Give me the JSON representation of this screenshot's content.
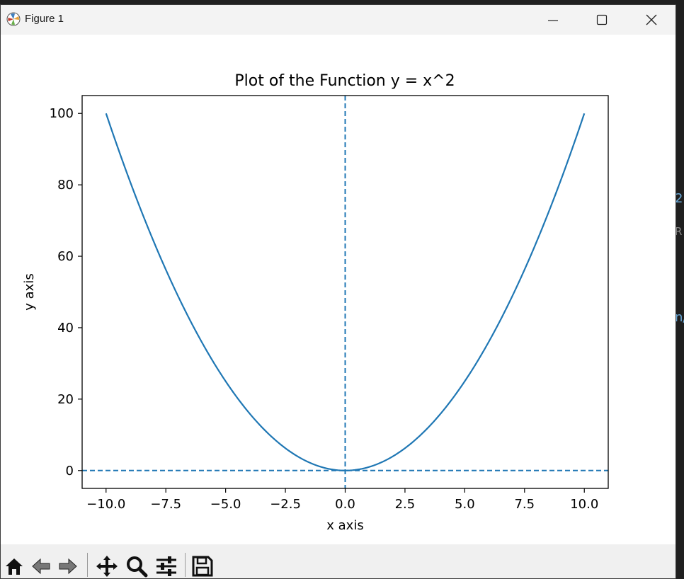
{
  "window": {
    "title": "Figure 1"
  },
  "titlebar_buttons": [
    "minimize-icon",
    "maximize-icon",
    "close-icon"
  ],
  "toolbar": {
    "tools": [
      "home-icon",
      "back-icon",
      "forward-icon",
      "pan-icon",
      "zoom-icon",
      "configure-subplots-icon",
      "save-icon"
    ]
  },
  "background_fragments": [
    "2",
    "R",
    "n/"
  ],
  "chart_data": {
    "type": "line",
    "title": "Plot of the Function y = x^2",
    "xlabel": "x axis",
    "ylabel": "y axis",
    "xlim": [
      -11,
      11
    ],
    "ylim": [
      -5,
      105
    ],
    "x_ticks": [
      -10,
      -7.5,
      -5,
      -2.5,
      0,
      2.5,
      5,
      7.5,
      10
    ],
    "x_tick_labels": [
      "−10.0",
      "−7.5",
      "−5.0",
      "−2.5",
      "0.0",
      "2.5",
      "5.0",
      "7.5",
      "10.0"
    ],
    "y_ticks": [
      0,
      20,
      40,
      60,
      80,
      100
    ],
    "y_tick_labels": [
      "0",
      "20",
      "40",
      "60",
      "80",
      "100"
    ],
    "grid": false,
    "series": [
      {
        "function": "x^2",
        "x_range": [
          -10,
          10
        ],
        "color": "#1f77b4"
      }
    ],
    "reference_lines": [
      {
        "orientation": "vertical",
        "x": 0,
        "style": "dashed",
        "color": "#1f77b4"
      },
      {
        "orientation": "horizontal",
        "y": 0,
        "style": "dashed",
        "color": "#1f77b4"
      }
    ]
  }
}
